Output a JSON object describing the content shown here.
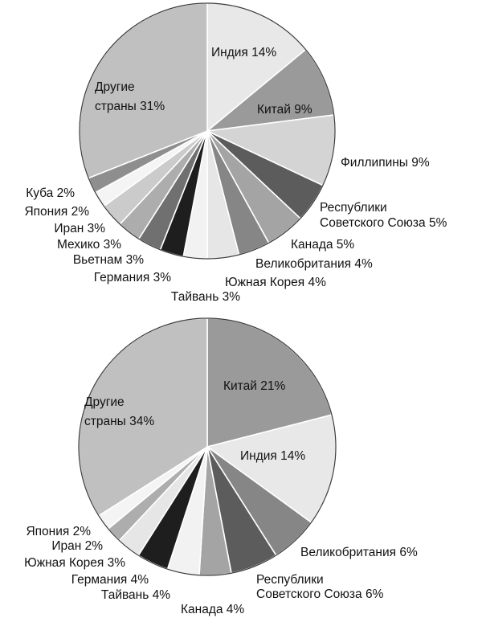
{
  "chart_data": [
    {
      "type": "pie",
      "unit": "%",
      "slices": [
        {
          "label": "Индия 14%",
          "value": 14,
          "color": "#e8e8e8"
        },
        {
          "label": "Китай 9%",
          "value": 9,
          "color": "#9a9a9a"
        },
        {
          "label": "Филлипины 9%",
          "value": 9,
          "color": "#d4d4d4"
        },
        {
          "label": [
            "Республики",
            "Советского Союза 5%"
          ],
          "value": 5,
          "color": "#5c5c5c"
        },
        {
          "label": "Канада 5%",
          "value": 5,
          "color": "#a4a4a4"
        },
        {
          "label": "Великобритания 4%",
          "value": 4,
          "color": "#868686"
        },
        {
          "label": "Южная Корея 4%",
          "value": 4,
          "color": "#e6e6e6"
        },
        {
          "label": "Тайвань 3%",
          "value": 3,
          "color": "#f2f2f2"
        },
        {
          "label": "Германия 3%",
          "value": 3,
          "color": "#1e1e1e"
        },
        {
          "label": "Вьетнам 3%",
          "value": 3,
          "color": "#707070"
        },
        {
          "label": "Мехико 3%",
          "value": 3,
          "color": "#adadad"
        },
        {
          "label": "Иран 3%",
          "value": 3,
          "color": "#cbcbcb"
        },
        {
          "label": "Япония 2%",
          "value": 2,
          "color": "#f4f4f4"
        },
        {
          "label": "Куба 2%",
          "value": 2,
          "color": "#8e8e8e"
        },
        {
          "label": [
            "Другие",
            "страны 31%"
          ],
          "value": 31,
          "color": "#c0c0c0"
        }
      ]
    },
    {
      "type": "pie",
      "unit": "%",
      "slices": [
        {
          "label": "Китай 21%",
          "value": 21,
          "color": "#9a9a9a"
        },
        {
          "label": "Индия 14%",
          "value": 14,
          "color": "#e8e8e8"
        },
        {
          "label": "Великобритания 6%",
          "value": 6,
          "color": "#868686"
        },
        {
          "label": [
            "Республики",
            "Советского Союза 6%"
          ],
          "value": 6,
          "color": "#5c5c5c"
        },
        {
          "label": "Канада 4%",
          "value": 4,
          "color": "#a4a4a4"
        },
        {
          "label": "Тайвань 4%",
          "value": 4,
          "color": "#f2f2f2"
        },
        {
          "label": "Германия 4%",
          "value": 4,
          "color": "#1e1e1e"
        },
        {
          "label": "Южная Корея 3%",
          "value": 3,
          "color": "#e6e6e6"
        },
        {
          "label": "Иран 2%",
          "value": 2,
          "color": "#adadad"
        },
        {
          "label": "Япония 2%",
          "value": 2,
          "color": "#f4f4f4"
        },
        {
          "label": [
            "Другие",
            "страны 34%"
          ],
          "value": 34,
          "color": "#c0c0c0"
        }
      ]
    }
  ]
}
